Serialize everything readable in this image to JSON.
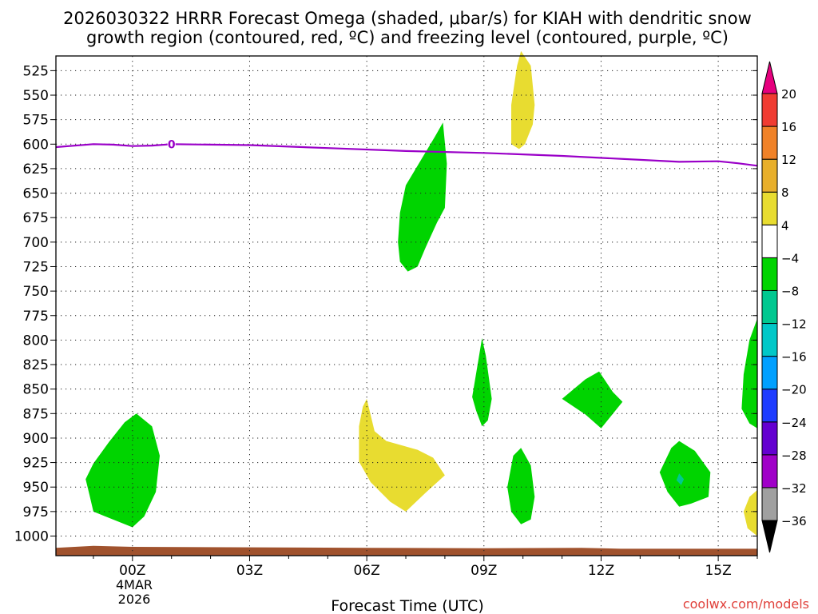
{
  "chart_data": {
    "type": "contour",
    "title_line1": "2026030322 HRRR Forecast Omega (shaded, μbar/s) for KIAH with dendritic snow",
    "title_line2": "growth region (contoured, red, ºC) and freezing level (contoured, purple, ºC)",
    "xlabel": "Forecast Time (UTC)",
    "date_label": [
      "4MAR",
      "2026"
    ],
    "x_range_hours": [
      -1.96,
      16.0
    ],
    "x_ticks": [
      {
        "hour": 0,
        "label": "00Z"
      },
      {
        "hour": 3,
        "label": "03Z"
      },
      {
        "hour": 6,
        "label": "06Z"
      },
      {
        "hour": 9,
        "label": "09Z"
      },
      {
        "hour": 12,
        "label": "12Z"
      },
      {
        "hour": 15,
        "label": "15Z"
      }
    ],
    "y_range_hpa": [
      1020,
      510
    ],
    "y_ticks": [
      525,
      550,
      575,
      600,
      625,
      650,
      675,
      700,
      725,
      750,
      775,
      800,
      825,
      850,
      875,
      900,
      925,
      950,
      975,
      1000
    ],
    "freezing_level": {
      "label": "0",
      "label_at": [
        1.0,
        600
      ],
      "points": [
        [
          -1.96,
          603
        ],
        [
          -1.0,
          600
        ],
        [
          -0.5,
          600.5
        ],
        [
          0.0,
          602
        ],
        [
          0.5,
          601.5
        ],
        [
          1.0,
          600
        ],
        [
          3.0,
          601
        ],
        [
          5.0,
          604
        ],
        [
          7.0,
          607
        ],
        [
          9.0,
          609
        ],
        [
          11.0,
          612
        ],
        [
          13.0,
          616
        ],
        [
          14.0,
          618
        ],
        [
          15.0,
          617.5
        ],
        [
          15.5,
          619.5
        ],
        [
          16.0,
          622
        ]
      ]
    },
    "ground": {
      "color": "#a0522d",
      "points": [
        [
          -1.96,
          1012
        ],
        [
          -1.0,
          1010
        ],
        [
          0.0,
          1011
        ],
        [
          6.0,
          1012
        ],
        [
          9.0,
          1012.5
        ],
        [
          11.5,
          1012
        ],
        [
          12.5,
          1013
        ],
        [
          16.0,
          1013
        ]
      ]
    },
    "omega_regions": [
      {
        "range": "-8 to -4",
        "color": "#00d400",
        "points": [
          [
            -1.2,
            942
          ],
          [
            -1.0,
            926
          ],
          [
            -0.6,
            904
          ],
          [
            -0.2,
            884
          ],
          [
            0.1,
            875
          ],
          [
            0.5,
            888
          ],
          [
            0.7,
            918
          ],
          [
            0.6,
            955
          ],
          [
            0.3,
            980
          ],
          [
            0.0,
            991
          ],
          [
            -0.5,
            983
          ],
          [
            -1.0,
            975
          ],
          [
            -1.1,
            958
          ]
        ]
      },
      {
        "range": "-8 to -4",
        "color": "#00d400",
        "points": [
          [
            6.8,
            700
          ],
          [
            6.85,
            670
          ],
          [
            7.0,
            642
          ],
          [
            7.3,
            622
          ],
          [
            7.75,
            592
          ],
          [
            7.95,
            578
          ],
          [
            8.05,
            620
          ],
          [
            8.0,
            665
          ],
          [
            7.8,
            680
          ],
          [
            7.5,
            706
          ],
          [
            7.3,
            725
          ],
          [
            7.05,
            730
          ],
          [
            6.85,
            720
          ]
        ]
      },
      {
        "range": "-8 to -4",
        "color": "#00d400",
        "points": [
          [
            8.7,
            858
          ],
          [
            8.85,
            822
          ],
          [
            8.95,
            798
          ],
          [
            9.05,
            816
          ],
          [
            9.2,
            860
          ],
          [
            9.1,
            882
          ],
          [
            8.95,
            888
          ],
          [
            8.8,
            872
          ]
        ]
      },
      {
        "range": "-8 to -4",
        "color": "#00d400",
        "points": [
          [
            11.0,
            860
          ],
          [
            11.6,
            840
          ],
          [
            11.95,
            832
          ],
          [
            12.3,
            853
          ],
          [
            12.55,
            863
          ],
          [
            12.0,
            890
          ],
          [
            11.6,
            876
          ]
        ]
      },
      {
        "range": "-8 to -4",
        "color": "#00d400",
        "points": [
          [
            9.6,
            950
          ],
          [
            9.75,
            918
          ],
          [
            9.95,
            910
          ],
          [
            10.2,
            928
          ],
          [
            10.3,
            960
          ],
          [
            10.2,
            983
          ],
          [
            9.95,
            988
          ],
          [
            9.7,
            975
          ]
        ]
      },
      {
        "range": "-8 to -4",
        "color": "#00d400",
        "points": [
          [
            13.5,
            935
          ],
          [
            13.8,
            910
          ],
          [
            14.0,
            903
          ],
          [
            14.4,
            913
          ],
          [
            14.8,
            935
          ],
          [
            14.75,
            960
          ],
          [
            14.3,
            967
          ],
          [
            14.0,
            970
          ],
          [
            13.7,
            955
          ]
        ]
      },
      {
        "range": "-8 to -4",
        "color": "#00d400",
        "points": [
          [
            16.0,
            778
          ],
          [
            16.0,
            890
          ],
          [
            15.8,
            885
          ],
          [
            15.6,
            870
          ],
          [
            15.65,
            835
          ],
          [
            15.8,
            800
          ]
        ]
      },
      {
        "range": "-12 to -8",
        "color": "#00c890",
        "points": [
          [
            14.0,
            936
          ],
          [
            14.12,
            942
          ],
          [
            14.05,
            948
          ],
          [
            13.93,
            943
          ]
        ]
      },
      {
        "range": "4 to 8",
        "color": "#e8dc30",
        "points": [
          [
            9.7,
            600
          ],
          [
            9.7,
            560
          ],
          [
            9.85,
            520
          ],
          [
            9.95,
            505
          ],
          [
            10.2,
            520
          ],
          [
            10.3,
            560
          ],
          [
            10.25,
            580
          ],
          [
            10.05,
            600
          ],
          [
            9.9,
            605
          ]
        ]
      },
      {
        "range": "4 to 8",
        "color": "#e8dc30",
        "points": [
          [
            5.8,
            888
          ],
          [
            5.9,
            868
          ],
          [
            6.0,
            860
          ],
          [
            6.2,
            893
          ],
          [
            6.5,
            903
          ],
          [
            7.3,
            912
          ],
          [
            7.7,
            920
          ],
          [
            8.0,
            938
          ],
          [
            7.5,
            956
          ],
          [
            7.0,
            975
          ],
          [
            6.6,
            965
          ],
          [
            6.1,
            945
          ],
          [
            5.8,
            924
          ]
        ]
      },
      {
        "range": "4 to 8",
        "color": "#e8dc30",
        "points": [
          [
            16.0,
            953
          ],
          [
            16.0,
            1000
          ],
          [
            15.75,
            992
          ],
          [
            15.65,
            975
          ],
          [
            15.8,
            960
          ]
        ]
      }
    ],
    "colorbar": {
      "units": "μbar/s",
      "levels": [
        -36,
        -32,
        -28,
        -24,
        -20,
        -16,
        -12,
        -8,
        -4,
        4,
        8,
        12,
        16,
        20
      ],
      "colors": [
        "#000000",
        "#a0a0a0",
        "#a000c8",
        "#6400d0",
        "#1e3cff",
        "#00a0ff",
        "#00c8c8",
        "#00c890",
        "#00d400",
        "#ffffff",
        "#e8dc30",
        "#e8af2b",
        "#f08228",
        "#f03c32",
        "#e6007e"
      ]
    }
  },
  "footer": {
    "credit": "coolwx.com/models"
  }
}
